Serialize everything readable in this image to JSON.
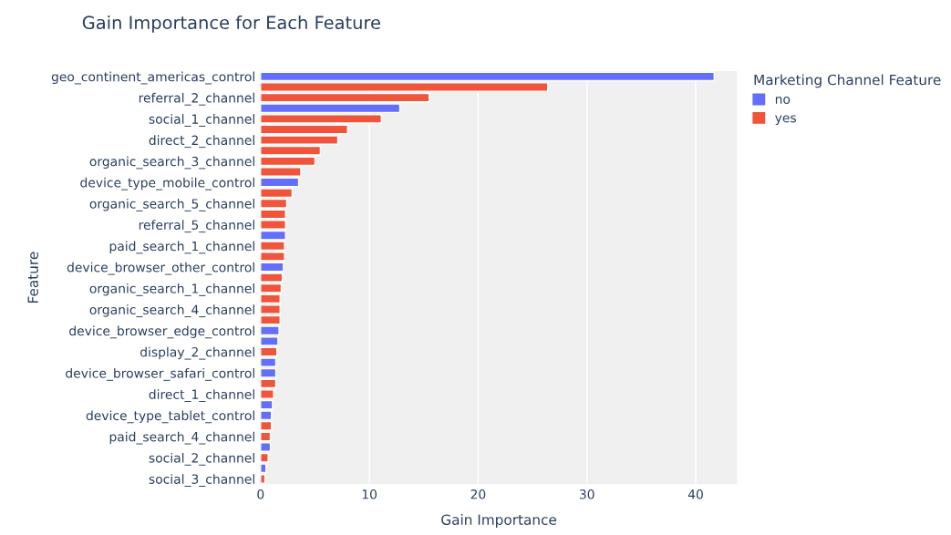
{
  "chart_data": {
    "type": "bar",
    "orientation": "horizontal",
    "title": "Gain Importance for Each Feature",
    "xlabel": "Gain Importance",
    "ylabel": "Feature",
    "legend_title": "Marketing Channel Feature",
    "legend": "top right",
    "grid": "x",
    "categories": [
      "geo_continent_americas_control",
      null,
      "referral_2_channel",
      null,
      "social_1_channel",
      null,
      "direct_2_channel",
      null,
      "organic_search_3_channel",
      null,
      "device_type_mobile_control",
      null,
      "organic_search_5_channel",
      null,
      "referral_5_channel",
      null,
      "paid_search_1_channel",
      null,
      "device_browser_other_control",
      null,
      "organic_search_1_channel",
      null,
      "organic_search_4_channel",
      null,
      "device_browser_edge_control",
      null,
      "display_2_channel",
      null,
      "device_browser_safari_control",
      null,
      "direct_1_channel",
      null,
      "device_type_tablet_control",
      null,
      "paid_search_4_channel",
      null,
      "social_2_channel",
      null,
      "social_3_channel"
    ],
    "series": [
      {
        "name": "no",
        "color": "#636efa",
        "values": [
          41.7,
          null,
          null,
          12.8,
          null,
          null,
          null,
          null,
          null,
          null,
          3.5,
          null,
          null,
          null,
          null,
          2.3,
          null,
          null,
          2.1,
          null,
          null,
          null,
          null,
          null,
          1.7,
          1.6,
          null,
          1.4,
          1.4,
          null,
          null,
          1.1,
          1.0,
          null,
          null,
          0.9,
          null,
          0.5,
          null
        ]
      },
      {
        "name": "yes",
        "color": "#ef553b",
        "values": [
          null,
          26.4,
          15.5,
          null,
          11.1,
          8.0,
          7.1,
          5.5,
          5.0,
          3.7,
          null,
          2.9,
          2.4,
          2.3,
          2.3,
          null,
          2.2,
          2.2,
          null,
          2.0,
          1.9,
          1.8,
          1.8,
          1.8,
          null,
          null,
          1.5,
          null,
          null,
          1.4,
          1.2,
          null,
          null,
          1.0,
          0.9,
          null,
          0.7,
          null,
          0.4
        ]
      }
    ],
    "xlim": [
      0,
      43.8
    ],
    "xticks": [
      0,
      10,
      20,
      30,
      40
    ]
  }
}
